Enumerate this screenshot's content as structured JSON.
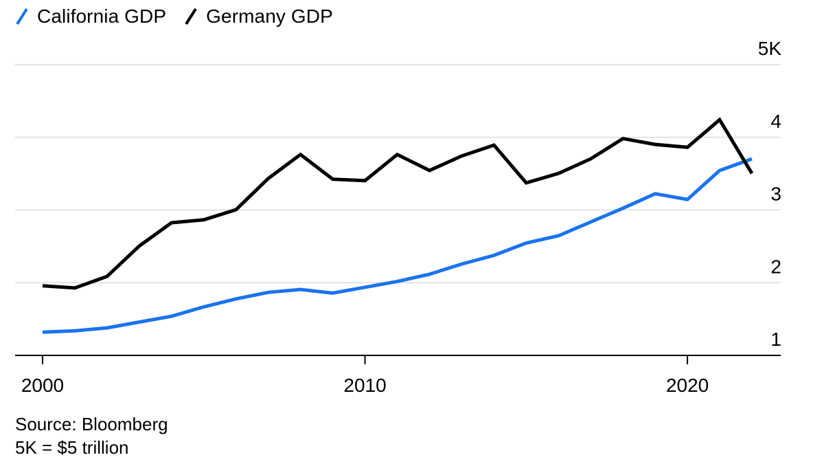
{
  "legend": [
    {
      "label": "California GDP",
      "color": "#1a73f0"
    },
    {
      "label": "Germany GDP",
      "color": "#000000"
    }
  ],
  "footer": {
    "source": "Source: Bloomberg",
    "note": "5K = $5 trillion"
  },
  "chart_data": {
    "type": "line",
    "x": [
      2000,
      2001,
      2002,
      2003,
      2004,
      2005,
      2006,
      2007,
      2008,
      2009,
      2010,
      2011,
      2012,
      2013,
      2014,
      2015,
      2016,
      2017,
      2018,
      2019,
      2020,
      2021,
      2022
    ],
    "series": [
      {
        "name": "California GDP",
        "color": "#1a73f0",
        "values": [
          1.31,
          1.33,
          1.37,
          1.45,
          1.53,
          1.66,
          1.77,
          1.86,
          1.9,
          1.85,
          1.93,
          2.01,
          2.11,
          2.25,
          2.37,
          2.54,
          2.64,
          2.83,
          3.02,
          3.22,
          3.14,
          3.54,
          3.7
        ]
      },
      {
        "name": "Germany GDP",
        "color": "#000000",
        "values": [
          1.95,
          1.92,
          2.08,
          2.5,
          2.82,
          2.86,
          3.0,
          3.43,
          3.76,
          3.42,
          3.4,
          3.76,
          3.54,
          3.74,
          3.89,
          3.37,
          3.5,
          3.7,
          3.98,
          3.9,
          3.86,
          4.24,
          3.5
        ]
      }
    ],
    "ylim": [
      1,
      5
    ],
    "yticks": [
      1,
      2,
      3,
      4,
      5
    ],
    "ytick_labels": [
      "1",
      "2",
      "3",
      "4",
      "5K"
    ],
    "xticks": [
      2000,
      2010,
      2020
    ],
    "xtick_labels": [
      "2000",
      "2010",
      "2020"
    ],
    "grid": true,
    "legend_position": "top-left"
  }
}
